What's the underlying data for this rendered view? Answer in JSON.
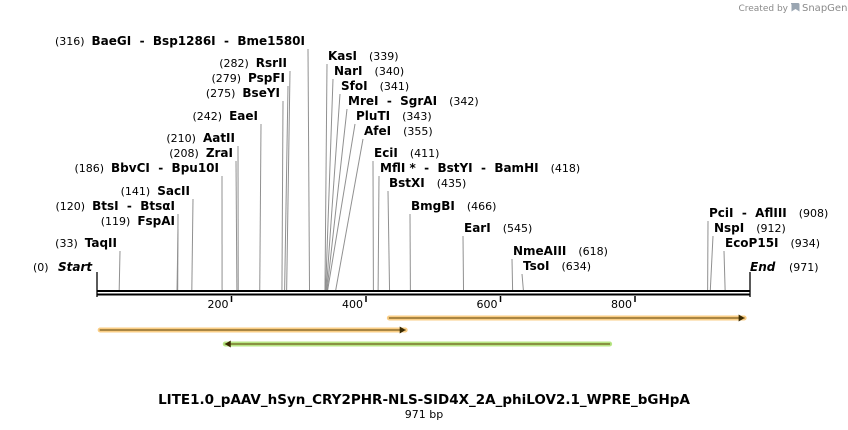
{
  "watermark": {
    "created_by": "Created by",
    "brand": "SnapGene"
  },
  "sequence": {
    "name": "LITE1.0_pAAV_hSyn_CRY2PHR-NLS-SID4X_2A_phiLOV2.1_WPRE_bGHpA",
    "length_label": "971 bp",
    "length": 971
  },
  "ends": {
    "start_pos": "(0)",
    "start_label": "Start",
    "end_label": "End",
    "end_pos": "(971)"
  },
  "ruler_ticks": [
    "200",
    "400",
    "600",
    "800"
  ],
  "sites": [
    {
      "pos": 33,
      "pos_label": "(33)",
      "names": "TaqII"
    },
    {
      "pos": 119,
      "pos_label": "(119)",
      "names": "FspAI"
    },
    {
      "pos": 120,
      "pos_label": "(120)",
      "names": "BtsI  -  BtsαI"
    },
    {
      "pos": 141,
      "pos_label": "(141)",
      "names": "SacII"
    },
    {
      "pos": 186,
      "pos_label": "(186)",
      "names": "BbvCI  -  Bpu10I"
    },
    {
      "pos": 208,
      "pos_label": "(208)",
      "names": "ZraI"
    },
    {
      "pos": 210,
      "pos_label": "(210)",
      "names": "AatII"
    },
    {
      "pos": 242,
      "pos_label": "(242)",
      "names": "EaeI"
    },
    {
      "pos": 275,
      "pos_label": "(275)",
      "names": "BseYI"
    },
    {
      "pos": 279,
      "pos_label": "(279)",
      "names": "PspFI"
    },
    {
      "pos": 282,
      "pos_label": "(282)",
      "names": "RsrII"
    },
    {
      "pos": 316,
      "pos_label": "(316)",
      "names": "BaeGI  -  Bsp1286I  -  Bme1580I"
    },
    {
      "pos": 339,
      "pos_label": "(339)",
      "names": "KasI"
    },
    {
      "pos": 340,
      "pos_label": "(340)",
      "names": "NarI"
    },
    {
      "pos": 341,
      "pos_label": "(341)",
      "names": "SfoI"
    },
    {
      "pos": 342,
      "pos_label": "(342)",
      "names": "MreI  -  SgrAI"
    },
    {
      "pos": 343,
      "pos_label": "(343)",
      "names": "PluTI"
    },
    {
      "pos": 355,
      "pos_label": "(355)",
      "names": "AfeI"
    },
    {
      "pos": 411,
      "pos_label": "(411)",
      "names": "EciI"
    },
    {
      "pos": 418,
      "pos_label": "(418)",
      "names": "MflI *  -  BstYI  -  BamHI"
    },
    {
      "pos": 435,
      "pos_label": "(435)",
      "names": "BstXI"
    },
    {
      "pos": 466,
      "pos_label": "(466)",
      "names": "BmgBI"
    },
    {
      "pos": 545,
      "pos_label": "(545)",
      "names": "EarI"
    },
    {
      "pos": 618,
      "pos_label": "(618)",
      "names": "NmeAIII"
    },
    {
      "pos": 634,
      "pos_label": "(634)",
      "names": "TsoI"
    },
    {
      "pos": 908,
      "pos_label": "(908)",
      "names": "PciI  -  AflIII"
    },
    {
      "pos": 912,
      "pos_label": "(912)",
      "names": "NspI"
    },
    {
      "pos": 934,
      "pos_label": "(934)",
      "names": "EcoP15I"
    }
  ],
  "features": [
    {
      "name": "feature-orange-1",
      "start": 1,
      "end": 462,
      "direction": "forward",
      "color": "#f5a623"
    },
    {
      "name": "feature-orange-2",
      "start": 431,
      "end": 966,
      "direction": "forward",
      "color": "#f5a623"
    },
    {
      "name": "feature-green-1",
      "start": 187,
      "end": 766,
      "direction": "reverse",
      "color": "#7ed321"
    }
  ],
  "colors": {
    "backbone": "#000000",
    "leader": "#909090",
    "frame": "#444444"
  }
}
